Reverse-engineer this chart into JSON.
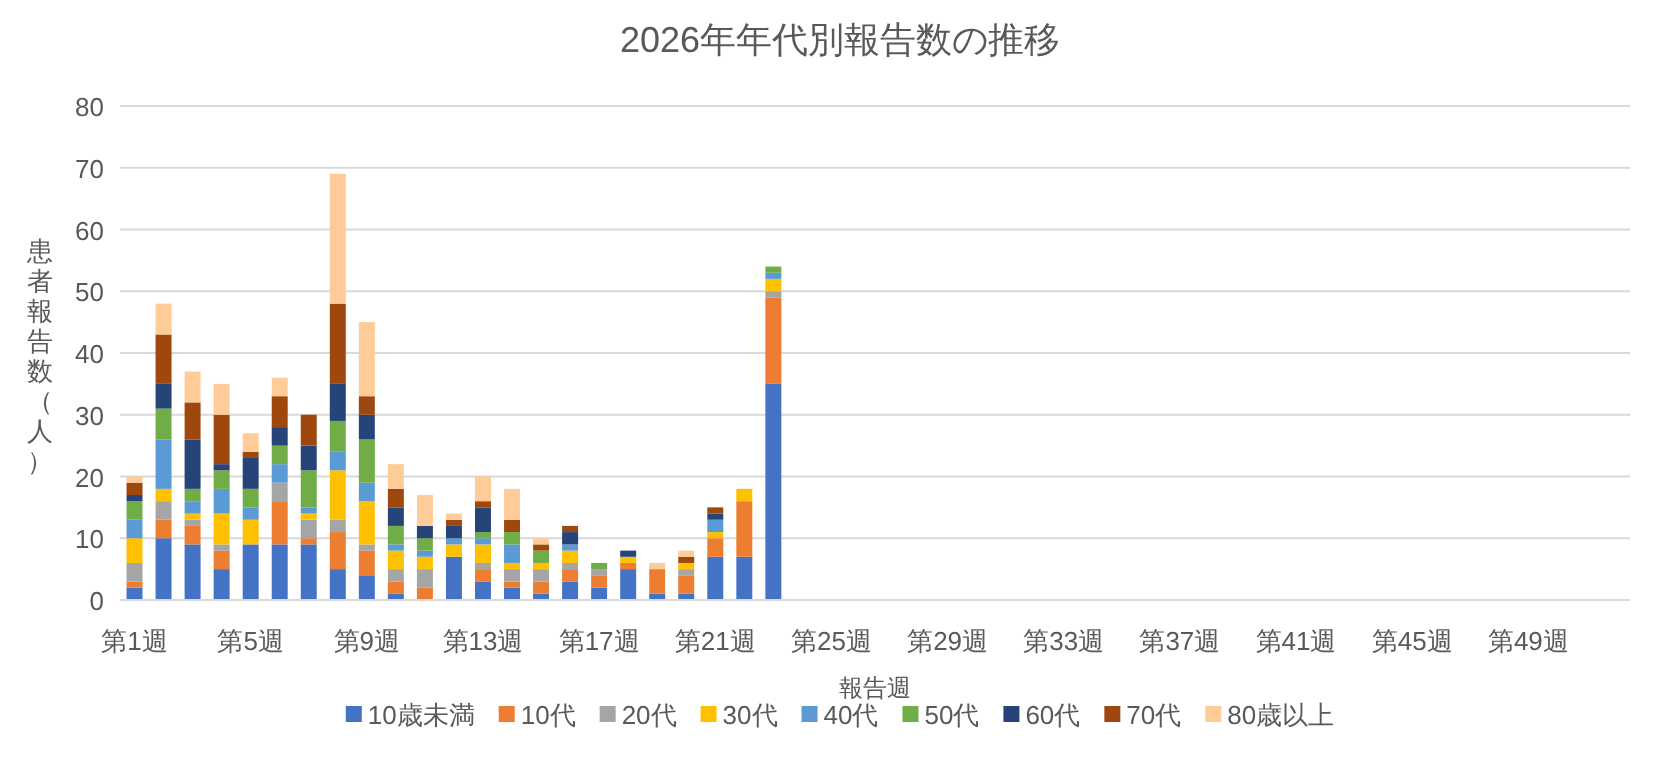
{
  "chart_data": {
    "type": "bar",
    "stacked": true,
    "title": "2026年年代別報告数の推移",
    "xlabel": "報告週",
    "ylabel": "患者報告数（人）",
    "categories": [
      "第1週",
      null,
      null,
      null,
      "第5週",
      null,
      null,
      null,
      "第9週",
      null,
      null,
      null,
      "第13週",
      null,
      null,
      null,
      "第17週",
      null,
      null,
      null,
      "第21週",
      null,
      null,
      null,
      "第25週",
      null,
      null,
      null,
      "第29週",
      null,
      null,
      null,
      "第33週",
      null,
      null,
      null,
      "第37週",
      null,
      null,
      null,
      "第41週",
      null,
      null,
      null,
      "第45週",
      null,
      null,
      null,
      "第49週",
      null,
      null,
      null
    ],
    "series": [
      {
        "name": "10歳未満",
        "color": "#4472c4",
        "values": [
          2,
          10,
          9,
          5,
          9,
          9,
          9,
          5,
          4,
          1,
          0,
          7,
          3,
          2,
          1,
          3,
          2,
          5,
          1,
          1,
          7,
          7,
          35,
          null,
          null,
          null,
          null,
          null,
          null,
          null,
          null,
          null,
          null,
          null,
          null,
          null,
          null,
          null,
          null,
          null,
          null,
          null,
          null,
          null,
          null,
          null,
          null,
          null,
          null,
          null,
          null,
          null
        ]
      },
      {
        "name": "10代",
        "color": "#ed7d31",
        "values": [
          1,
          3,
          3,
          3,
          0,
          7,
          1,
          6,
          4,
          2,
          2,
          0,
          2,
          1,
          2,
          2,
          2,
          1,
          4,
          3,
          3,
          9,
          14,
          null,
          null,
          null,
          null,
          null,
          null,
          null,
          null,
          null,
          null,
          null,
          null,
          null,
          null,
          null,
          null,
          null,
          null,
          null,
          null,
          null,
          null,
          null,
          null,
          null,
          null,
          null,
          null,
          null
        ]
      },
      {
        "name": "20代",
        "color": "#a5a5a5",
        "values": [
          3,
          3,
          1,
          1,
          0,
          3,
          3,
          2,
          1,
          2,
          3,
          0,
          1,
          2,
          2,
          1,
          1,
          0,
          0,
          1,
          0,
          0,
          1,
          null,
          null,
          null,
          null,
          null,
          null,
          null,
          null,
          null,
          null,
          null,
          null,
          null,
          null,
          null,
          null,
          null,
          null,
          null,
          null,
          null,
          null,
          null,
          null,
          null,
          null,
          null,
          null,
          null
        ]
      },
      {
        "name": "30代",
        "color": "#ffc000",
        "values": [
          4,
          2,
          1,
          5,
          4,
          0,
          1,
          8,
          7,
          3,
          2,
          2,
          3,
          1,
          1,
          2,
          0,
          1,
          0,
          1,
          1,
          2,
          2,
          null,
          null,
          null,
          null,
          null,
          null,
          null,
          null,
          null,
          null,
          null,
          null,
          null,
          null,
          null,
          null,
          null,
          null,
          null,
          null,
          null,
          null,
          null,
          null,
          null,
          null,
          null,
          null,
          null
        ]
      },
      {
        "name": "40代",
        "color": "#5b9bd5",
        "values": [
          3,
          8,
          2,
          4,
          2,
          3,
          1,
          3,
          3,
          1,
          1,
          1,
          1,
          3,
          0,
          1,
          0,
          0,
          0,
          0,
          2,
          0,
          1,
          null,
          null,
          null,
          null,
          null,
          null,
          null,
          null,
          null,
          null,
          null,
          null,
          null,
          null,
          null,
          null,
          null,
          null,
          null,
          null,
          null,
          null,
          null,
          null,
          null,
          null,
          null,
          null,
          null
        ]
      },
      {
        "name": "50代",
        "color": "#70ad47",
        "values": [
          3,
          5,
          2,
          3,
          3,
          3,
          6,
          5,
          7,
          3,
          2,
          0,
          1,
          2,
          2,
          0,
          1,
          0,
          0,
          0,
          0,
          0,
          1,
          null,
          null,
          null,
          null,
          null,
          null,
          null,
          null,
          null,
          null,
          null,
          null,
          null,
          null,
          null,
          null,
          null,
          null,
          null,
          null,
          null,
          null,
          null,
          null,
          null,
          null,
          null,
          null,
          null
        ]
      },
      {
        "name": "60代",
        "color": "#264478",
        "values": [
          1,
          4,
          8,
          1,
          5,
          3,
          4,
          6,
          4,
          3,
          2,
          2,
          4,
          0,
          0,
          2,
          0,
          1,
          0,
          0,
          1,
          0,
          0,
          null,
          null,
          null,
          null,
          null,
          null,
          null,
          null,
          null,
          null,
          null,
          null,
          null,
          null,
          null,
          null,
          null,
          null,
          null,
          null,
          null,
          null,
          null,
          null,
          null,
          null,
          null,
          null,
          null
        ]
      },
      {
        "name": "70代",
        "color": "#9e480e",
        "values": [
          2,
          8,
          6,
          8,
          1,
          5,
          5,
          13,
          3,
          3,
          0,
          1,
          1,
          2,
          1,
          1,
          0,
          0,
          0,
          1,
          1,
          0,
          0,
          null,
          null,
          null,
          null,
          null,
          null,
          null,
          null,
          null,
          null,
          null,
          null,
          null,
          null,
          null,
          null,
          null,
          null,
          null,
          null,
          null,
          null,
          null,
          null,
          null,
          null,
          null,
          null,
          null
        ]
      },
      {
        "name": "80歳以上",
        "color": "#ffcc99",
        "values": [
          1,
          5,
          5,
          5,
          3,
          3,
          0,
          21,
          12,
          4,
          5,
          1,
          4,
          5,
          1,
          0,
          0,
          0,
          1,
          1,
          0,
          0,
          0,
          null,
          null,
          null,
          null,
          null,
          null,
          null,
          null,
          null,
          null,
          null,
          null,
          null,
          null,
          null,
          null,
          null,
          null,
          null,
          null,
          null,
          null,
          null,
          null,
          null,
          null,
          null,
          null,
          null
        ]
      }
    ],
    "ylim": [
      0,
      80
    ],
    "yticks": [
      0,
      10,
      20,
      30,
      40,
      50,
      60,
      70,
      80
    ],
    "grid": "y",
    "legend": "bottom"
  }
}
